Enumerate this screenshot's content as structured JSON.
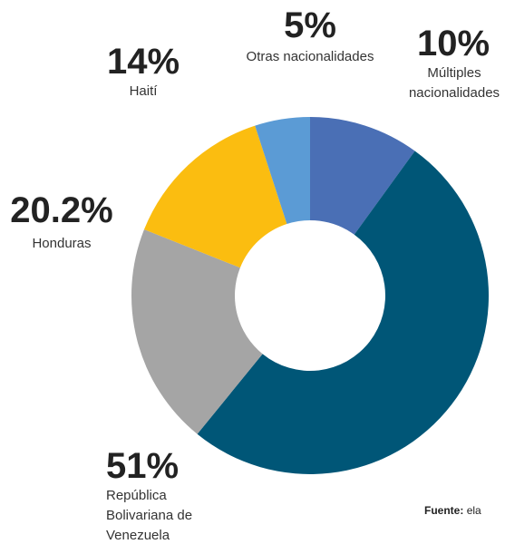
{
  "chart_data": {
    "type": "donut",
    "categories": [
      "Múltiples nacionalidades",
      "República Bolivariana de Venezuela",
      "Honduras",
      "Haití",
      "Otras nacionalidades"
    ],
    "values": [
      10,
      51,
      20.2,
      14,
      5
    ],
    "value_labels": [
      "10%",
      "51%",
      "20.2%",
      "14%",
      "5%"
    ],
    "colors": [
      "#4a6fb5",
      "#005677",
      "#a5a5a5",
      "#fbbd10",
      "#5b9bd5"
    ],
    "source": {
      "label": "Fuente:",
      "text": "ela"
    }
  }
}
